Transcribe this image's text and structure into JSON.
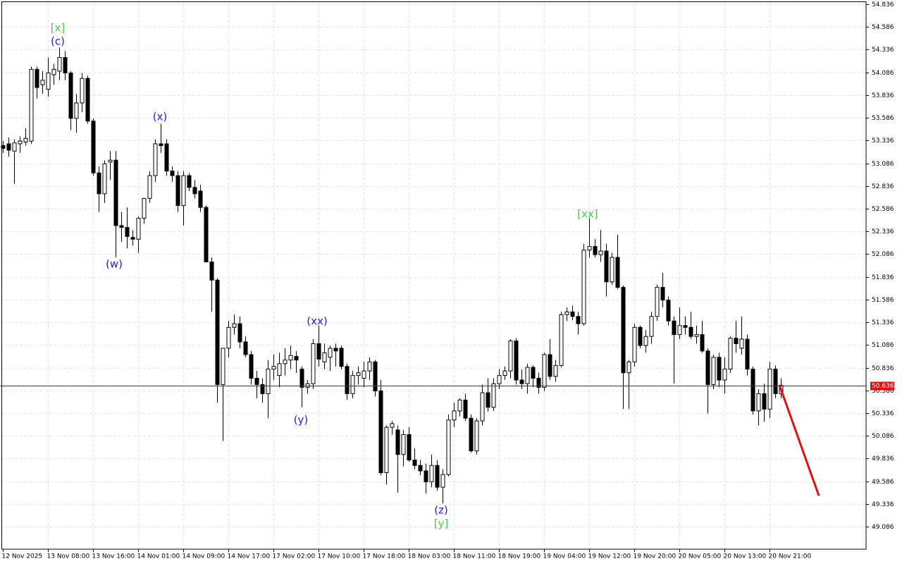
{
  "chart_data": {
    "type": "candlestick",
    "xlim": [
      -0.5,
      153.125
    ],
    "ylim": [
      48.838,
      54.883
    ],
    "yticks": [
      54.836,
      54.586,
      54.336,
      54.086,
      53.836,
      53.586,
      53.336,
      53.086,
      52.836,
      52.586,
      52.336,
      52.086,
      51.836,
      51.586,
      51.336,
      51.086,
      50.836,
      50.586,
      50.336,
      50.086,
      49.836,
      49.586,
      49.336,
      49.086
    ],
    "xticks": [
      {
        "value": 0,
        "label": "12 Nov 2025"
      },
      {
        "value": 8,
        "label": "13 Nov 08:00"
      },
      {
        "value": 16,
        "label": "13 Nov 16:00"
      },
      {
        "value": 24,
        "label": "14 Nov 01:00"
      },
      {
        "value": 32,
        "label": "14 Nov 09:00"
      },
      {
        "value": 40,
        "label": "14 Nov 17:00"
      },
      {
        "value": 48,
        "label": "17 Nov 02:00"
      },
      {
        "value": 56,
        "label": "17 Nov 10:00"
      },
      {
        "value": 64,
        "label": "17 Nov 18:00"
      },
      {
        "value": 72,
        "label": "18 Nov 03:00"
      },
      {
        "value": 80,
        "label": "18 Nov 11:00"
      },
      {
        "value": 88,
        "label": "18 Nov 19:00"
      },
      {
        "value": 96,
        "label": "19 Nov 04:00"
      },
      {
        "value": 104,
        "label": "19 Nov 12:00"
      },
      {
        "value": 112,
        "label": "19 Nov 20:00"
      },
      {
        "value": 120,
        "label": "20 Nov 05:00"
      },
      {
        "value": 128,
        "label": "20 Nov 13:00"
      },
      {
        "value": 136,
        "label": "20 Nov 21:00"
      }
    ],
    "grid": true,
    "current_price": 50.636,
    "annotations": [
      "[x]",
      "(c)",
      "(x)",
      "(w)",
      "(xx)",
      "(y)",
      "(z)",
      "[y]",
      "[xx]"
    ],
    "candles": [
      [
        53.28,
        53.33,
        53.2,
        53.25
      ],
      [
        53.3,
        53.37,
        53.16,
        53.23
      ],
      [
        53.22,
        53.35,
        52.86,
        53.31
      ],
      [
        53.3,
        53.38,
        53.2,
        53.33
      ],
      [
        53.32,
        53.47,
        53.28,
        53.36
      ],
      [
        53.33,
        54.15,
        53.3,
        54.12
      ],
      [
        54.12,
        54.15,
        53.8,
        53.92
      ],
      [
        53.95,
        54.1,
        53.85,
        54.0
      ],
      [
        53.9,
        54.25,
        53.82,
        54.08
      ],
      [
        54.06,
        54.18,
        53.95,
        54.12
      ],
      [
        54.1,
        54.36,
        54.0,
        54.25
      ],
      [
        54.25,
        54.32,
        54.0,
        54.08
      ],
      [
        54.08,
        54.1,
        53.45,
        53.58
      ],
      [
        53.58,
        53.85,
        53.42,
        53.75
      ],
      [
        53.75,
        54.08,
        53.65,
        54.02
      ],
      [
        54.02,
        54.05,
        53.52,
        53.55
      ],
      [
        53.55,
        53.58,
        52.95,
        52.98
      ],
      [
        52.98,
        53.05,
        52.55,
        52.75
      ],
      [
        52.75,
        53.12,
        52.65,
        53.08
      ],
      [
        53.1,
        53.22,
        52.9,
        53.12
      ],
      [
        53.12,
        53.22,
        52.05,
        52.4
      ],
      [
        52.4,
        52.55,
        52.22,
        52.38
      ],
      [
        52.38,
        52.6,
        52.15,
        52.28
      ],
      [
        52.27,
        52.35,
        52.18,
        52.25
      ],
      [
        52.25,
        52.5,
        52.1,
        52.48
      ],
      [
        52.48,
        52.7,
        52.42,
        52.7
      ],
      [
        52.7,
        53.0,
        52.65,
        52.95
      ],
      [
        52.95,
        53.35,
        52.88,
        53.3
      ],
      [
        53.3,
        53.52,
        53.2,
        53.28
      ],
      [
        53.3,
        53.35,
        52.95,
        53.0
      ],
      [
        53.0,
        53.05,
        52.88,
        52.95
      ],
      [
        52.95,
        53.0,
        52.55,
        52.62
      ],
      [
        52.62,
        53.0,
        52.4,
        52.95
      ],
      [
        52.95,
        52.98,
        52.78,
        52.82
      ],
      [
        52.82,
        52.9,
        52.7,
        52.75
      ],
      [
        52.78,
        52.85,
        52.55,
        52.6
      ],
      [
        52.6,
        52.62,
        52.0,
        52.0
      ],
      [
        52.0,
        52.05,
        51.45,
        51.8
      ],
      [
        51.8,
        51.82,
        50.45,
        50.65
      ],
      [
        50.65,
        51.05,
        50.03,
        51.05
      ],
      [
        51.05,
        51.35,
        50.95,
        51.28
      ],
      [
        51.28,
        51.42,
        51.2,
        51.32
      ],
      [
        51.32,
        51.4,
        51.05,
        51.12
      ],
      [
        51.12,
        51.18,
        50.95,
        50.98
      ],
      [
        50.98,
        51.02,
        50.65,
        50.72
      ],
      [
        50.72,
        50.8,
        50.5,
        50.65
      ],
      [
        50.65,
        50.72,
        50.45,
        50.55
      ],
      [
        50.55,
        50.92,
        50.28,
        50.82
      ],
      [
        50.82,
        50.98,
        50.7,
        50.85
      ],
      [
        50.75,
        51.0,
        50.62,
        50.88
      ],
      [
        50.88,
        51.05,
        50.75,
        50.92
      ],
      [
        50.92,
        51.08,
        50.82,
        50.97
      ],
      [
        50.96,
        51.02,
        50.78,
        50.92
      ],
      [
        50.82,
        50.85,
        50.4,
        50.62
      ],
      [
        50.62,
        50.7,
        50.55,
        50.66
      ],
      [
        50.66,
        51.15,
        50.6,
        51.1
      ],
      [
        51.1,
        51.3,
        50.85,
        50.93
      ],
      [
        50.9,
        51.1,
        50.82,
        51.0
      ],
      [
        50.95,
        51.08,
        50.8,
        51.05
      ],
      [
        51.05,
        51.1,
        50.85,
        51.02
      ],
      [
        51.05,
        51.08,
        50.82,
        50.85
      ],
      [
        50.85,
        50.88,
        50.48,
        50.55
      ],
      [
        50.55,
        50.8,
        50.5,
        50.75
      ],
      [
        50.75,
        50.85,
        50.65,
        50.78
      ],
      [
        50.72,
        50.9,
        50.62,
        50.8
      ],
      [
        50.8,
        50.95,
        50.7,
        50.9
      ],
      [
        50.9,
        50.92,
        50.52,
        50.58
      ],
      [
        50.58,
        50.7,
        49.65,
        49.68
      ],
      [
        49.68,
        50.2,
        49.55,
        50.18
      ],
      [
        50.18,
        50.25,
        50.1,
        50.22
      ],
      [
        50.15,
        50.2,
        49.46,
        49.88
      ],
      [
        49.88,
        50.15,
        49.75,
        50.1
      ],
      [
        50.1,
        50.18,
        49.8,
        49.82
      ],
      [
        49.82,
        49.95,
        49.72,
        49.76
      ],
      [
        49.76,
        49.82,
        49.65,
        49.7
      ],
      [
        49.7,
        49.78,
        49.45,
        49.58
      ],
      [
        49.58,
        49.88,
        49.52,
        49.76
      ],
      [
        49.76,
        49.82,
        49.48,
        49.52
      ],
      [
        49.52,
        49.72,
        49.34,
        49.66
      ],
      [
        49.66,
        50.32,
        49.64,
        50.26
      ],
      [
        50.26,
        50.45,
        50.18,
        50.36
      ],
      [
        50.36,
        50.5,
        50.3,
        50.48
      ],
      [
        50.48,
        50.55,
        50.25,
        50.28
      ],
      [
        50.28,
        50.32,
        49.9,
        49.92
      ],
      [
        49.92,
        50.28,
        49.88,
        50.25
      ],
      [
        50.25,
        50.65,
        50.2,
        50.56
      ],
      [
        50.56,
        50.72,
        50.35,
        50.4
      ],
      [
        50.4,
        50.72,
        50.36,
        50.66
      ],
      [
        50.66,
        50.82,
        50.6,
        50.75
      ],
      [
        50.75,
        50.85,
        50.7,
        50.8
      ],
      [
        50.8,
        51.15,
        50.72,
        51.13
      ],
      [
        51.13,
        51.16,
        50.65,
        50.7
      ],
      [
        50.7,
        50.82,
        50.6,
        50.66
      ],
      [
        50.66,
        50.88,
        50.55,
        50.84
      ],
      [
        50.84,
        50.86,
        50.62,
        50.72
      ],
      [
        50.72,
        50.78,
        50.55,
        50.62
      ],
      [
        50.62,
        51.0,
        50.58,
        50.98
      ],
      [
        50.98,
        51.15,
        50.7,
        50.74
      ],
      [
        50.74,
        50.92,
        50.68,
        50.86
      ],
      [
        50.86,
        51.45,
        50.84,
        51.42
      ],
      [
        51.42,
        51.5,
        51.35,
        51.45
      ],
      [
        51.45,
        51.52,
        51.36,
        51.4
      ],
      [
        51.4,
        51.45,
        51.2,
        51.32
      ],
      [
        51.32,
        52.2,
        51.3,
        52.13
      ],
      [
        52.13,
        52.48,
        52.05,
        52.17
      ],
      [
        52.17,
        52.25,
        52.05,
        52.08
      ],
      [
        52.08,
        52.35,
        52.0,
        52.12
      ],
      [
        52.12,
        52.2,
        51.62,
        51.78
      ],
      [
        51.78,
        52.1,
        51.75,
        52.05
      ],
      [
        52.05,
        52.3,
        51.7,
        51.72
      ],
      [
        51.72,
        51.74,
        50.38,
        50.78
      ],
      [
        50.78,
        50.92,
        50.38,
        50.9
      ],
      [
        50.9,
        51.32,
        50.85,
        51.28
      ],
      [
        51.28,
        51.3,
        51.05,
        51.08
      ],
      [
        51.08,
        51.25,
        51.0,
        51.18
      ],
      [
        51.18,
        51.45,
        51.1,
        51.4
      ],
      [
        51.4,
        51.75,
        51.35,
        51.72
      ],
      [
        51.72,
        51.88,
        51.5,
        51.58
      ],
      [
        51.58,
        51.62,
        51.3,
        51.35
      ],
      [
        51.35,
        51.4,
        50.66,
        51.2
      ],
      [
        51.2,
        51.5,
        51.15,
        51.3
      ],
      [
        51.3,
        51.4,
        51.2,
        51.28
      ],
      [
        51.28,
        51.45,
        51.15,
        51.18
      ],
      [
        51.18,
        51.3,
        51.1,
        51.2
      ],
      [
        51.2,
        51.35,
        51.0,
        51.02
      ],
      [
        51.02,
        51.05,
        50.33,
        50.65
      ],
      [
        50.65,
        50.98,
        50.6,
        50.95
      ],
      [
        50.95,
        51.0,
        50.62,
        50.7
      ],
      [
        50.7,
        50.95,
        50.55,
        50.82
      ],
      [
        50.82,
        51.18,
        50.78,
        51.16
      ],
      [
        51.16,
        51.35,
        51.0,
        51.1
      ],
      [
        51.05,
        51.4,
        50.98,
        51.15
      ],
      [
        51.15,
        51.2,
        50.75,
        50.82
      ],
      [
        50.82,
        50.85,
        50.32,
        50.36
      ],
      [
        50.36,
        50.6,
        50.2,
        50.55
      ],
      [
        50.55,
        50.66,
        50.24,
        50.38
      ],
      [
        50.38,
        50.9,
        50.28,
        50.82
      ],
      [
        50.82,
        50.86,
        50.5,
        50.55
      ],
      [
        50.55,
        50.72,
        50.5,
        50.64
      ]
    ]
  }
}
